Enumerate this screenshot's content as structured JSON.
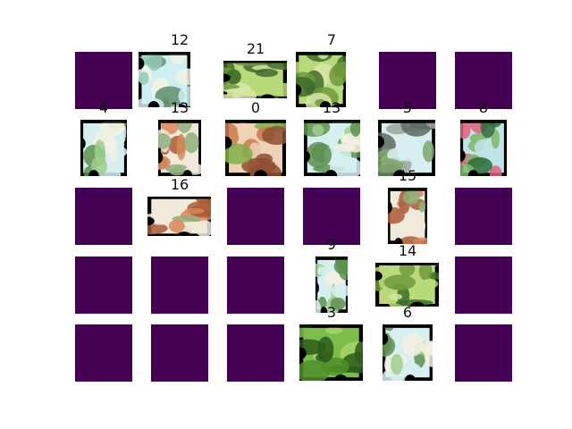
{
  "puzzle": {
    "rows": 5,
    "cols": 6,
    "slots": [
      {
        "row": 0,
        "col": 0,
        "state": "empty"
      },
      {
        "row": 0,
        "col": 1,
        "state": "piece",
        "label": "12",
        "theme": "sky-claw"
      },
      {
        "row": 0,
        "col": 2,
        "state": "piece",
        "label": "21",
        "theme": "green-dino"
      },
      {
        "row": 0,
        "col": 3,
        "state": "piece",
        "label": "7",
        "theme": "green-dino"
      },
      {
        "row": 0,
        "col": 4,
        "state": "empty"
      },
      {
        "row": 0,
        "col": 5,
        "state": "empty"
      },
      {
        "row": 1,
        "col": 0,
        "state": "piece",
        "label": "4",
        "theme": "sky-leaves"
      },
      {
        "row": 1,
        "col": 1,
        "state": "piece",
        "label": "13",
        "theme": "orange-legs"
      },
      {
        "row": 1,
        "col": 2,
        "state": "piece",
        "label": "0",
        "theme": "shell"
      },
      {
        "row": 1,
        "col": 3,
        "state": "piece",
        "label": "13",
        "theme": "sky-leaves"
      },
      {
        "row": 1,
        "col": 4,
        "state": "piece",
        "label": "5",
        "theme": "grey-dino"
      },
      {
        "row": 1,
        "col": 5,
        "state": "piece",
        "label": "8",
        "theme": "pink-head"
      },
      {
        "row": 2,
        "col": 0,
        "state": "empty"
      },
      {
        "row": 2,
        "col": 1,
        "state": "piece",
        "label": "16",
        "theme": "orange-legs"
      },
      {
        "row": 2,
        "col": 2,
        "state": "empty"
      },
      {
        "row": 2,
        "col": 3,
        "state": "empty"
      },
      {
        "row": 2,
        "col": 4,
        "state": "piece",
        "label": "15",
        "theme": "orange-legs"
      },
      {
        "row": 2,
        "col": 5,
        "state": "empty"
      },
      {
        "row": 3,
        "col": 0,
        "state": "empty"
      },
      {
        "row": 3,
        "col": 1,
        "state": "empty"
      },
      {
        "row": 3,
        "col": 2,
        "state": "empty"
      },
      {
        "row": 3,
        "col": 3,
        "state": "piece",
        "label": "9",
        "theme": "sky-leaves"
      },
      {
        "row": 3,
        "col": 4,
        "state": "piece",
        "label": "14",
        "theme": "green-dino"
      },
      {
        "row": 3,
        "col": 5,
        "state": "empty"
      },
      {
        "row": 4,
        "col": 0,
        "state": "empty"
      },
      {
        "row": 4,
        "col": 1,
        "state": "empty"
      },
      {
        "row": 4,
        "col": 2,
        "state": "empty"
      },
      {
        "row": 4,
        "col": 3,
        "state": "piece",
        "label": "3",
        "theme": "foliage"
      },
      {
        "row": 4,
        "col": 4,
        "state": "piece",
        "label": "6",
        "theme": "sky-leaves"
      },
      {
        "row": 4,
        "col": 5,
        "state": "empty"
      }
    ]
  },
  "colors": {
    "empty_slot": "#440154",
    "piece_background": "#000000",
    "label": "#111111"
  },
  "themes": {
    "sky-claw": [
      "#cfeef2",
      "#8fc9b0",
      "#5f8e6a",
      "#f2f2e6"
    ],
    "green-dino": [
      "#b9d97a",
      "#6f9a3c",
      "#3e6b2a",
      "#d8e6a8"
    ],
    "sky-leaves": [
      "#d6f0f2",
      "#9fcf8d",
      "#5d8f4f",
      "#f4f1e2"
    ],
    "orange-legs": [
      "#f0e9dc",
      "#d9875a",
      "#a95a36",
      "#8fb07a"
    ],
    "shell": [
      "#f0d2b6",
      "#c97a4e",
      "#8e4f30",
      "#7fb04a"
    ],
    "grey-dino": [
      "#d9eef0",
      "#9aa39a",
      "#5e6a62",
      "#7ea86b"
    ],
    "pink-head": [
      "#bfe3e8",
      "#7fb86a",
      "#2f6b3a",
      "#e0607e"
    ],
    "foliage": [
      "#7dbd4a",
      "#4f8f2a",
      "#2c5c1a",
      "#a9d46b"
    ]
  }
}
